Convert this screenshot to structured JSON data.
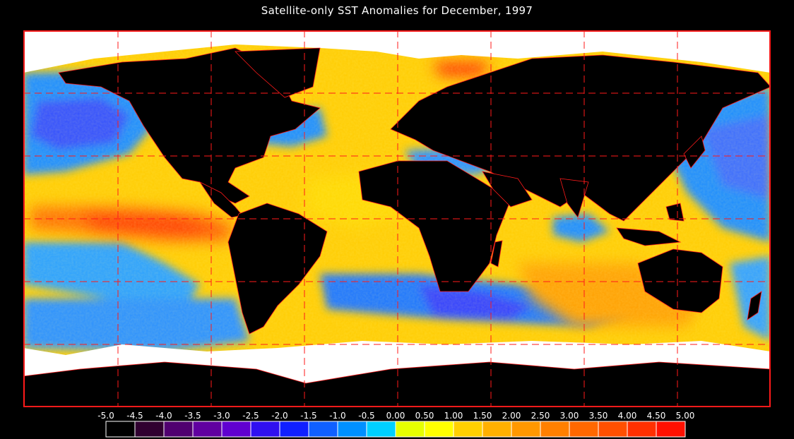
{
  "title": "Satellite-only SST Anomalies for December, 1997",
  "colors": {
    "background": "#000000",
    "land": "#000000",
    "ice": "#ffffff",
    "borders": "#ff1a1a",
    "grid": "#ff1a1a"
  },
  "colorbar": {
    "labels": [
      "-5.0",
      "-4.5",
      "-4.0",
      "-3.5",
      "-3.0",
      "-2.5",
      "-2.0",
      "-1.5",
      "-1.0",
      "-0.5",
      "0.00",
      "0.50",
      "1.00",
      "1.50",
      "2.00",
      "2.50",
      "3.00",
      "3.50",
      "4.00",
      "4.50",
      "5.00"
    ],
    "colors": [
      "#000000",
      "#300030",
      "#500070",
      "#6000a0",
      "#6000d0",
      "#3010f0",
      "#1020ff",
      "#1060ff",
      "#0090ff",
      "#00d0ff",
      "#e6ff00",
      "#ffff00",
      "#ffd000",
      "#ffb000",
      "#ff9800",
      "#ff8000",
      "#ff6800",
      "#ff5000",
      "#ff3000",
      "#ff1000"
    ]
  }
}
